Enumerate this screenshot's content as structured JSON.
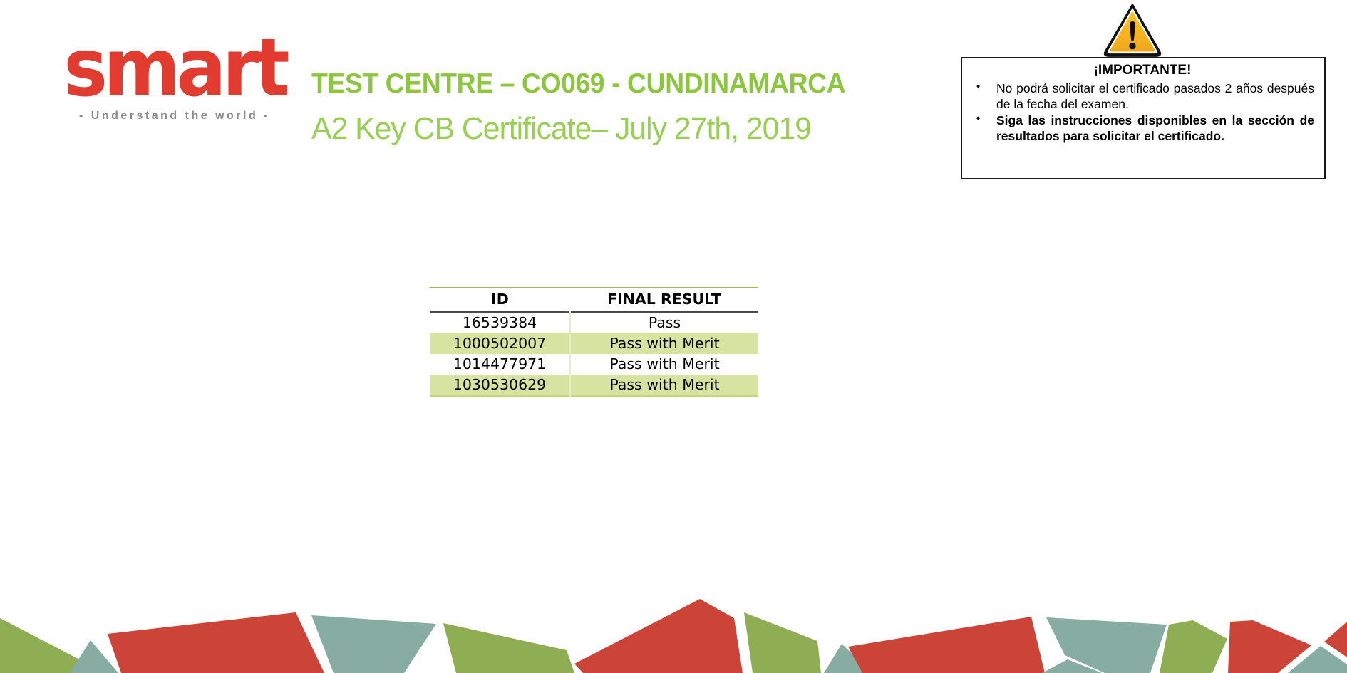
{
  "logo": {
    "text": "smart",
    "tagline": "- Understand the world -",
    "color": "#e23c30",
    "tagline_color": "#8a8a8a"
  },
  "header": {
    "title": "TEST CENTRE – CO069 - CUNDINAMARCA",
    "subtitle": "A2 Key CB Certificate– July 27th, 2019",
    "title_color": "#8cc63f",
    "subtitle_color": "#97cf52"
  },
  "notice": {
    "title": "¡IMPORTANTE!",
    "items": [
      {
        "text": "No podrá solicitar el certificado pasados 2 años después de la fecha del examen.",
        "bold": false
      },
      {
        "text": "Siga las instrucciones disponibles en la sección de resultados para solicitar el certificado.",
        "bold": true
      }
    ],
    "icon": {
      "name": "warning-triangle-icon",
      "fill": "#f4b223",
      "border": "#111111"
    },
    "border_color": "#1a1a1a"
  },
  "results_table": {
    "columns": [
      "ID",
      "FINAL RESULT"
    ],
    "rows": [
      {
        "id": "16539384",
        "final_result": "Pass"
      },
      {
        "id": "1000502007",
        "final_result": "Pass with Merit"
      },
      {
        "id": "1014477971",
        "final_result": "Pass with Merit"
      },
      {
        "id": "1030530629",
        "final_result": "Pass with Merit"
      }
    ],
    "row_highlight_color": "#d6e3a1",
    "header_top_border_color": "#9bbb59"
  },
  "mosaic_colors": {
    "red": "#cb4437",
    "olive": "#8fad52",
    "teal": "#87aca1"
  }
}
